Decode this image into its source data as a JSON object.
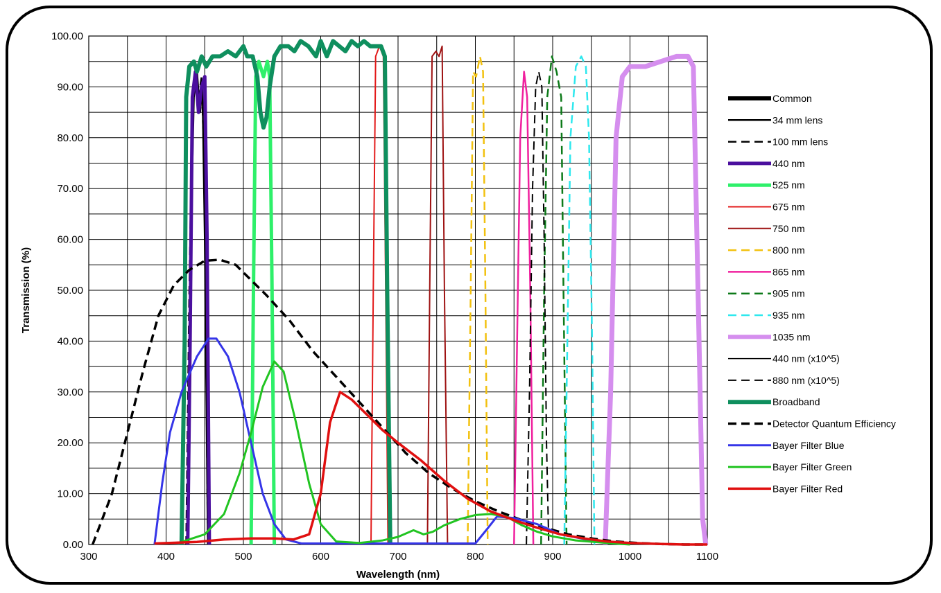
{
  "chart_data": {
    "type": "line",
    "xlabel": "Wavelength (nm)",
    "ylabel": "Transmission (%)",
    "xlim": [
      300,
      1100
    ],
    "ylim": [
      0,
      100
    ],
    "x_ticks": [
      "300",
      "400",
      "500",
      "600",
      "700",
      "800",
      "900",
      "1000",
      "1100"
    ],
    "y_ticks": [
      "0.00",
      "10.00",
      "20.00",
      "30.00",
      "40.00",
      "50.00",
      "60.00",
      "70.00",
      "80.00",
      "90.00",
      "100.00"
    ],
    "grid": true,
    "legend_position": "right",
    "series": [
      {
        "name": "Common",
        "color": "#000000",
        "dash": "solid",
        "width": 6,
        "points": []
      },
      {
        "name": "34 mm lens",
        "color": "#000000",
        "dash": "solid",
        "width": 2.5,
        "points": [
          [
            428,
            0
          ],
          [
            432,
            60
          ],
          [
            436,
            88
          ],
          [
            440,
            93
          ],
          [
            444,
            85
          ],
          [
            447,
            90
          ],
          [
            450,
            60
          ],
          [
            454,
            0
          ]
        ]
      },
      {
        "name": "100 mm lens",
        "color": "#000000",
        "dash": "dash",
        "width": 2.5,
        "points": [
          [
            426,
            0
          ],
          [
            430,
            50
          ],
          [
            434,
            85
          ],
          [
            438,
            92
          ],
          [
            442,
            88
          ],
          [
            446,
            92
          ],
          [
            450,
            70
          ],
          [
            454,
            0
          ]
        ]
      },
      {
        "name": "440 nm",
        "color": "#4b0f9e",
        "dash": "solid",
        "width": 5,
        "points": [
          [
            428,
            0
          ],
          [
            431,
            40
          ],
          [
            434,
            88
          ],
          [
            438,
            93
          ],
          [
            442,
            85
          ],
          [
            446,
            90
          ],
          [
            450,
            92
          ],
          [
            453,
            60
          ],
          [
            456,
            0
          ]
        ]
      },
      {
        "name": "525 nm",
        "color": "#2ef06a",
        "dash": "solid",
        "width": 5,
        "points": [
          [
            510,
            0
          ],
          [
            513,
            50
          ],
          [
            516,
            92
          ],
          [
            520,
            95
          ],
          [
            526,
            92
          ],
          [
            531,
            95
          ],
          [
            534,
            92
          ],
          [
            537,
            50
          ],
          [
            540,
            0
          ]
        ]
      },
      {
        "name": "675 nm",
        "color": "#e31b1b",
        "dash": "solid",
        "width": 2,
        "points": [
          [
            665,
            0
          ],
          [
            668,
            50
          ],
          [
            671,
            96
          ],
          [
            676,
            98
          ],
          [
            681,
            96
          ],
          [
            684,
            50
          ],
          [
            687,
            0
          ]
        ]
      },
      {
        "name": "750 nm",
        "color": "#9e1212",
        "dash": "solid",
        "width": 2,
        "points": [
          [
            738,
            0
          ],
          [
            741,
            50
          ],
          [
            744,
            96
          ],
          [
            749,
            97
          ],
          [
            753,
            96
          ],
          [
            757,
            98
          ],
          [
            760,
            50
          ],
          [
            764,
            0
          ]
        ]
      },
      {
        "name": "800 nm",
        "color": "#f2c10f",
        "dash": "dash",
        "width": 2.5,
        "points": [
          [
            790,
            0
          ],
          [
            794,
            50
          ],
          [
            797,
            93
          ],
          [
            801,
            92
          ],
          [
            806,
            96
          ],
          [
            810,
            93
          ],
          [
            813,
            50
          ],
          [
            816,
            0
          ]
        ]
      },
      {
        "name": "865 nm",
        "color": "#f0209e",
        "dash": "solid",
        "width": 2.5,
        "points": [
          [
            850,
            0
          ],
          [
            854,
            40
          ],
          [
            858,
            80
          ],
          [
            863,
            93
          ],
          [
            867,
            88
          ],
          [
            871,
            50
          ],
          [
            875,
            0
          ]
        ]
      },
      {
        "name": "905 nm",
        "color": "#0d7a19",
        "dash": "dash",
        "width": 2.5,
        "points": [
          [
            885,
            0
          ],
          [
            889,
            50
          ],
          [
            893,
            88
          ],
          [
            899,
            96
          ],
          [
            905,
            93
          ],
          [
            911,
            88
          ],
          [
            914,
            50
          ],
          [
            918,
            0
          ]
        ]
      },
      {
        "name": "935 nm",
        "color": "#2ee8ee",
        "dash": "dash",
        "width": 2.5,
        "points": [
          [
            915,
            0
          ],
          [
            919,
            40
          ],
          [
            923,
            80
          ],
          [
            930,
            94
          ],
          [
            937,
            96
          ],
          [
            943,
            94
          ],
          [
            947,
            80
          ],
          [
            951,
            40
          ],
          [
            954,
            0
          ]
        ]
      },
      {
        "name": "1035 nm",
        "color": "#d58eee",
        "dash": "solid",
        "width": 7,
        "points": [
          [
            968,
            0
          ],
          [
            975,
            30
          ],
          [
            982,
            80
          ],
          [
            990,
            92
          ],
          [
            1000,
            94
          ],
          [
            1020,
            94
          ],
          [
            1040,
            95
          ],
          [
            1060,
            96
          ],
          [
            1075,
            96
          ],
          [
            1082,
            94
          ],
          [
            1088,
            50
          ],
          [
            1094,
            5
          ],
          [
            1098,
            0
          ]
        ]
      },
      {
        "name": "440 nm (x10^5)",
        "color": "#000000",
        "dash": "solid",
        "width": 1.5,
        "points": []
      },
      {
        "name": "880 nm (x10^5)",
        "color": "#000000",
        "dash": "dash",
        "width": 2,
        "points": [
          [
            866,
            0
          ],
          [
            870,
            30
          ],
          [
            874,
            70
          ],
          [
            878,
            90
          ],
          [
            882,
            93
          ],
          [
            886,
            90
          ],
          [
            889,
            60
          ],
          [
            892,
            20
          ],
          [
            895,
            0
          ]
        ]
      },
      {
        "name": "Broadband",
        "color": "#0f8f5e",
        "dash": "solid",
        "width": 6,
        "points": [
          [
            420,
            0
          ],
          [
            424,
            40
          ],
          [
            426,
            88
          ],
          [
            430,
            94
          ],
          [
            436,
            95
          ],
          [
            440,
            93
          ],
          [
            446,
            96
          ],
          [
            452,
            94
          ],
          [
            460,
            96
          ],
          [
            470,
            96
          ],
          [
            480,
            97
          ],
          [
            490,
            96
          ],
          [
            500,
            98
          ],
          [
            505,
            96
          ],
          [
            512,
            96
          ],
          [
            518,
            92
          ],
          [
            522,
            85
          ],
          [
            526,
            82
          ],
          [
            530,
            84
          ],
          [
            534,
            90
          ],
          [
            540,
            96
          ],
          [
            548,
            98
          ],
          [
            558,
            98
          ],
          [
            566,
            97
          ],
          [
            574,
            99
          ],
          [
            584,
            98
          ],
          [
            594,
            96
          ],
          [
            600,
            99
          ],
          [
            608,
            96
          ],
          [
            616,
            99
          ],
          [
            624,
            98
          ],
          [
            632,
            97
          ],
          [
            640,
            99
          ],
          [
            648,
            98
          ],
          [
            656,
            99
          ],
          [
            664,
            98
          ],
          [
            672,
            98
          ],
          [
            678,
            98
          ],
          [
            683,
            96
          ],
          [
            686,
            50
          ],
          [
            690,
            0
          ]
        ]
      },
      {
        "name": "Detector Quantum Efficiency",
        "color": "#000000",
        "dash": "dash",
        "width": 3.5,
        "points": [
          [
            305,
            0
          ],
          [
            330,
            10
          ],
          [
            350,
            22
          ],
          [
            370,
            34
          ],
          [
            390,
            45
          ],
          [
            410,
            51
          ],
          [
            430,
            54
          ],
          [
            450,
            55.8
          ],
          [
            470,
            56
          ],
          [
            490,
            55
          ],
          [
            510,
            52
          ],
          [
            530,
            49
          ],
          [
            560,
            44
          ],
          [
            590,
            38
          ],
          [
            620,
            33
          ],
          [
            650,
            28
          ],
          [
            680,
            23
          ],
          [
            710,
            18
          ],
          [
            740,
            14
          ],
          [
            770,
            11
          ],
          [
            800,
            8.5
          ],
          [
            830,
            6.5
          ],
          [
            860,
            4.8
          ],
          [
            890,
            3.3
          ],
          [
            920,
            2
          ],
          [
            950,
            1.2
          ],
          [
            980,
            0.6
          ],
          [
            1010,
            0.3
          ],
          [
            1040,
            0.1
          ],
          [
            1070,
            0
          ],
          [
            1100,
            0
          ]
        ]
      },
      {
        "name": "Bayer Filter Blue",
        "color": "#3535e8",
        "dash": "solid",
        "width": 3,
        "points": [
          [
            385,
            0
          ],
          [
            395,
            12
          ],
          [
            405,
            22
          ],
          [
            420,
            30
          ],
          [
            440,
            37
          ],
          [
            455,
            40.5
          ],
          [
            465,
            40.5
          ],
          [
            480,
            37
          ],
          [
            495,
            30
          ],
          [
            510,
            20
          ],
          [
            525,
            10
          ],
          [
            540,
            4
          ],
          [
            555,
            1
          ],
          [
            575,
            0.2
          ],
          [
            800,
            0.2
          ],
          [
            815,
            3
          ],
          [
            828,
            5.5
          ],
          [
            850,
            5.2
          ],
          [
            880,
            4
          ],
          [
            910,
            2
          ],
          [
            950,
            0.8
          ],
          [
            1000,
            0.2
          ]
        ]
      },
      {
        "name": "Bayer Filter Green",
        "color": "#21c421",
        "dash": "solid",
        "width": 3,
        "points": [
          [
            420,
            0.5
          ],
          [
            450,
            2
          ],
          [
            475,
            6
          ],
          [
            495,
            14
          ],
          [
            510,
            22
          ],
          [
            525,
            31
          ],
          [
            540,
            36
          ],
          [
            552,
            34
          ],
          [
            568,
            24
          ],
          [
            585,
            12
          ],
          [
            600,
            4
          ],
          [
            620,
            0.6
          ],
          [
            650,
            0.3
          ],
          [
            680,
            0.8
          ],
          [
            700,
            1.5
          ],
          [
            720,
            2.8
          ],
          [
            733,
            2
          ],
          [
            745,
            2.5
          ],
          [
            760,
            3.8
          ],
          [
            780,
            5
          ],
          [
            800,
            5.8
          ],
          [
            820,
            6
          ],
          [
            840,
            5.5
          ],
          [
            860,
            3.8
          ],
          [
            880,
            2.5
          ],
          [
            900,
            1.6
          ],
          [
            930,
            0.8
          ],
          [
            970,
            0.3
          ],
          [
            1000,
            0
          ]
        ]
      },
      {
        "name": "Bayer Filter Red",
        "color": "#e01010",
        "dash": "solid",
        "width": 3.5,
        "points": [
          [
            385,
            0.2
          ],
          [
            440,
            0.5
          ],
          [
            475,
            1
          ],
          [
            510,
            1.2
          ],
          [
            540,
            1.2
          ],
          [
            565,
            1
          ],
          [
            585,
            2
          ],
          [
            600,
            10
          ],
          [
            612,
            24
          ],
          [
            625,
            30
          ],
          [
            640,
            28.5
          ],
          [
            660,
            25.5
          ],
          [
            680,
            22.5
          ],
          [
            700,
            20
          ],
          [
            730,
            16.5
          ],
          [
            760,
            12.5
          ],
          [
            790,
            9
          ],
          [
            820,
            6.5
          ],
          [
            850,
            4.8
          ],
          [
            880,
            3.3
          ],
          [
            910,
            2
          ],
          [
            940,
            1.2
          ],
          [
            970,
            0.6
          ],
          [
            1000,
            0.3
          ],
          [
            1040,
            0.1
          ],
          [
            1070,
            0
          ],
          [
            1100,
            0
          ]
        ]
      }
    ]
  }
}
